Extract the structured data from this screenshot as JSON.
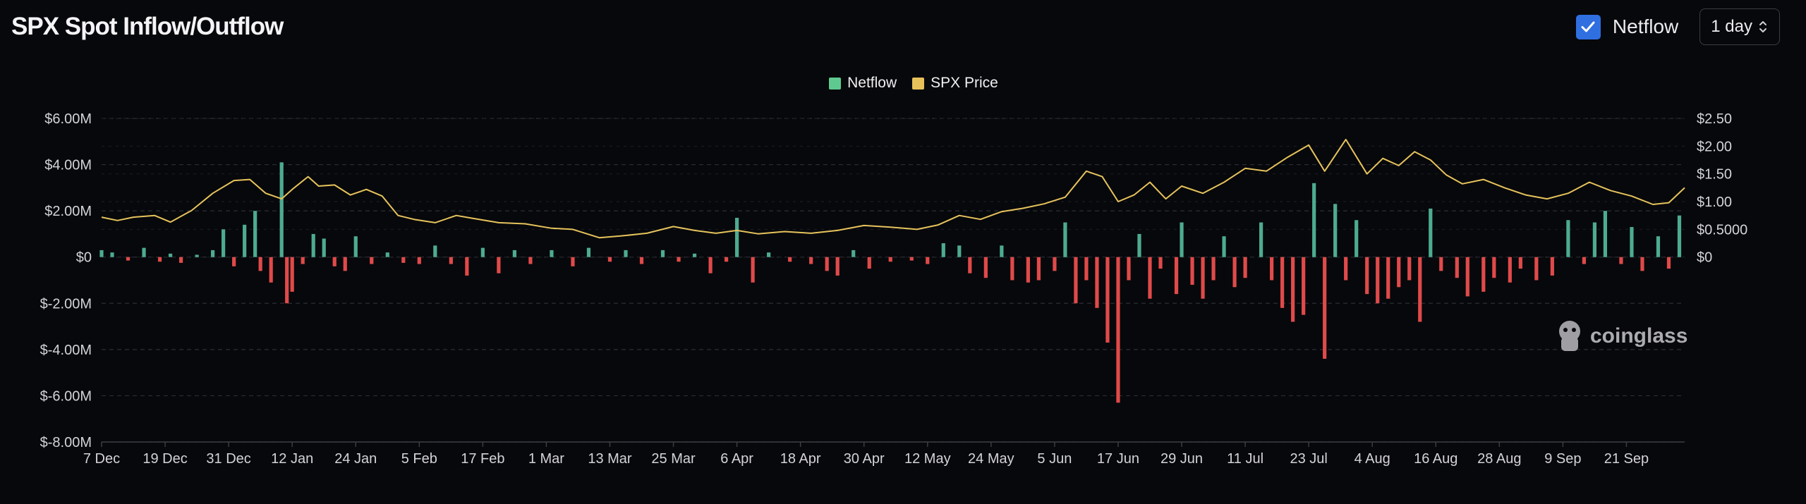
{
  "title": "SPX Spot Inflow/Outflow",
  "controls": {
    "netflow_toggle_label": "Netflow",
    "netflow_checked": true,
    "interval_value": "1 day"
  },
  "colors": {
    "positive": "#4dab90",
    "negative": "#e04a4a",
    "price": "#e6c35c",
    "checkbox": "#2f6fe0",
    "legend_netflow": "#5fca8f",
    "legend_price": "#e8c05a"
  },
  "watermark": "coinglass",
  "chart_data": {
    "type": "bar",
    "legend": [
      "Netflow",
      "SPX Price"
    ],
    "legend_position": "top-center",
    "grid": true,
    "x_start": "2023-12-07",
    "x_end": "2024-10-01",
    "x_ticks": [
      "7 Dec",
      "19 Dec",
      "31 Dec",
      "12 Jan",
      "24 Jan",
      "5 Feb",
      "17 Feb",
      "1 Mar",
      "13 Mar",
      "25 Mar",
      "6 Apr",
      "18 Apr",
      "30 Apr",
      "12 May",
      "24 May",
      "5 Jun",
      "17 Jun",
      "29 Jun",
      "11 Jul",
      "23 Jul",
      "4 Aug",
      "16 Aug",
      "28 Aug",
      "9 Sep",
      "21 Sep"
    ],
    "y_left": {
      "ticks": [
        "$6.00M",
        "$4.00M",
        "$2.00M",
        "$0",
        "$-2.00M",
        "$-4.00M",
        "$-6.00M",
        "$-8.00M"
      ],
      "lim": [
        -8000000,
        6000000
      ]
    },
    "y_right": {
      "ticks": [
        "$2.50",
        "$2.00",
        "$1.50",
        "$1.00",
        "$0.5000",
        "$0"
      ],
      "lim": [
        0,
        2.5
      ]
    },
    "series": [
      {
        "name": "Netflow",
        "type": "bar",
        "points": [
          [
            "2023-12-07",
            300000
          ],
          [
            "2023-12-09",
            200000
          ],
          [
            "2023-12-12",
            -150000
          ],
          [
            "2023-12-15",
            400000
          ],
          [
            "2023-12-18",
            -200000
          ],
          [
            "2023-12-20",
            150000
          ],
          [
            "2023-12-22",
            -250000
          ],
          [
            "2023-12-25",
            100000
          ],
          [
            "2023-12-28",
            300000
          ],
          [
            "2023-12-30",
            1200000
          ],
          [
            "2024-01-01",
            -400000
          ],
          [
            "2024-01-03",
            1400000
          ],
          [
            "2024-01-05",
            2000000
          ],
          [
            "2024-01-06",
            -600000
          ],
          [
            "2024-01-08",
            -1100000
          ],
          [
            "2024-01-10",
            4100000
          ],
          [
            "2024-01-11",
            -2000000
          ],
          [
            "2024-01-12",
            -1500000
          ],
          [
            "2024-01-14",
            -300000
          ],
          [
            "2024-01-16",
            1000000
          ],
          [
            "2024-01-18",
            800000
          ],
          [
            "2024-01-20",
            -400000
          ],
          [
            "2024-01-22",
            -600000
          ],
          [
            "2024-01-24",
            900000
          ],
          [
            "2024-01-27",
            -300000
          ],
          [
            "2024-01-30",
            200000
          ],
          [
            "2024-02-02",
            -250000
          ],
          [
            "2024-02-05",
            -300000
          ],
          [
            "2024-02-08",
            500000
          ],
          [
            "2024-02-11",
            -300000
          ],
          [
            "2024-02-14",
            -800000
          ],
          [
            "2024-02-17",
            400000
          ],
          [
            "2024-02-20",
            -700000
          ],
          [
            "2024-02-23",
            300000
          ],
          [
            "2024-02-26",
            -300000
          ],
          [
            "2024-03-01",
            300000
          ],
          [
            "2024-03-05",
            -400000
          ],
          [
            "2024-03-08",
            400000
          ],
          [
            "2024-03-12",
            -200000
          ],
          [
            "2024-03-15",
            300000
          ],
          [
            "2024-03-18",
            -300000
          ],
          [
            "2024-03-22",
            300000
          ],
          [
            "2024-03-25",
            -200000
          ],
          [
            "2024-03-28",
            150000
          ],
          [
            "2024-03-31",
            -700000
          ],
          [
            "2024-04-03",
            -200000
          ],
          [
            "2024-04-05",
            1700000
          ],
          [
            "2024-04-08",
            -1100000
          ],
          [
            "2024-04-11",
            200000
          ],
          [
            "2024-04-15",
            -200000
          ],
          [
            "2024-04-19",
            -300000
          ],
          [
            "2024-04-22",
            -600000
          ],
          [
            "2024-04-24",
            -800000
          ],
          [
            "2024-04-27",
            300000
          ],
          [
            "2024-04-30",
            -500000
          ],
          [
            "2024-05-04",
            -200000
          ],
          [
            "2024-05-08",
            -150000
          ],
          [
            "2024-05-11",
            -300000
          ],
          [
            "2024-05-14",
            600000
          ],
          [
            "2024-05-17",
            500000
          ],
          [
            "2024-05-19",
            -700000
          ],
          [
            "2024-05-22",
            -900000
          ],
          [
            "2024-05-25",
            500000
          ],
          [
            "2024-05-27",
            -1000000
          ],
          [
            "2024-05-30",
            -1100000
          ],
          [
            "2024-06-01",
            -1000000
          ],
          [
            "2024-06-04",
            -600000
          ],
          [
            "2024-06-06",
            1500000
          ],
          [
            "2024-06-08",
            -2000000
          ],
          [
            "2024-06-10",
            -1000000
          ],
          [
            "2024-06-12",
            -2200000
          ],
          [
            "2024-06-14",
            -3700000
          ],
          [
            "2024-06-16",
            -6300000
          ],
          [
            "2024-06-18",
            -1000000
          ],
          [
            "2024-06-20",
            1000000
          ],
          [
            "2024-06-22",
            -1800000
          ],
          [
            "2024-06-24",
            -500000
          ],
          [
            "2024-06-27",
            -1600000
          ],
          [
            "2024-06-28",
            1500000
          ],
          [
            "2024-06-30",
            -1200000
          ],
          [
            "2024-07-02",
            -1800000
          ],
          [
            "2024-07-04",
            -1000000
          ],
          [
            "2024-07-06",
            900000
          ],
          [
            "2024-07-08",
            -1300000
          ],
          [
            "2024-07-10",
            -900000
          ],
          [
            "2024-07-13",
            1500000
          ],
          [
            "2024-07-15",
            -1000000
          ],
          [
            "2024-07-17",
            -2200000
          ],
          [
            "2024-07-19",
            -2800000
          ],
          [
            "2024-07-21",
            -2500000
          ],
          [
            "2024-07-23",
            3200000
          ],
          [
            "2024-07-25",
            -4400000
          ],
          [
            "2024-07-27",
            2300000
          ],
          [
            "2024-07-29",
            -1000000
          ],
          [
            "2024-07-31",
            1600000
          ],
          [
            "2024-08-02",
            -1600000
          ],
          [
            "2024-08-04",
            -2000000
          ],
          [
            "2024-08-06",
            -1800000
          ],
          [
            "2024-08-08",
            -1300000
          ],
          [
            "2024-08-10",
            -1000000
          ],
          [
            "2024-08-12",
            -2800000
          ],
          [
            "2024-08-14",
            2100000
          ],
          [
            "2024-08-16",
            -600000
          ],
          [
            "2024-08-19",
            -900000
          ],
          [
            "2024-08-21",
            -1700000
          ],
          [
            "2024-08-24",
            -1500000
          ],
          [
            "2024-08-26",
            -900000
          ],
          [
            "2024-08-29",
            -1100000
          ],
          [
            "2024-08-31",
            -500000
          ],
          [
            "2024-09-03",
            -1000000
          ],
          [
            "2024-09-06",
            -800000
          ],
          [
            "2024-09-09",
            1600000
          ],
          [
            "2024-09-12",
            -300000
          ],
          [
            "2024-09-14",
            1500000
          ],
          [
            "2024-09-16",
            2000000
          ],
          [
            "2024-09-19",
            -300000
          ],
          [
            "2024-09-21",
            1300000
          ],
          [
            "2024-09-23",
            -600000
          ],
          [
            "2024-09-26",
            900000
          ],
          [
            "2024-09-28",
            -500000
          ],
          [
            "2024-09-30",
            1800000
          ]
        ]
      },
      {
        "name": "SPX Price",
        "type": "line",
        "axis": "right",
        "points": [
          [
            "2023-12-07",
            0.72
          ],
          [
            "2023-12-10",
            0.66
          ],
          [
            "2023-12-13",
            0.72
          ],
          [
            "2023-12-17",
            0.75
          ],
          [
            "2023-12-20",
            0.63
          ],
          [
            "2023-12-24",
            0.84
          ],
          [
            "2023-12-28",
            1.15
          ],
          [
            "2024-01-01",
            1.38
          ],
          [
            "2024-01-04",
            1.4
          ],
          [
            "2024-01-07",
            1.15
          ],
          [
            "2024-01-10",
            1.05
          ],
          [
            "2024-01-12",
            1.22
          ],
          [
            "2024-01-15",
            1.45
          ],
          [
            "2024-01-17",
            1.28
          ],
          [
            "2024-01-20",
            1.3
          ],
          [
            "2024-01-23",
            1.12
          ],
          [
            "2024-01-26",
            1.22
          ],
          [
            "2024-01-29",
            1.1
          ],
          [
            "2024-02-01",
            0.75
          ],
          [
            "2024-02-04",
            0.68
          ],
          [
            "2024-02-08",
            0.62
          ],
          [
            "2024-02-12",
            0.75
          ],
          [
            "2024-02-15",
            0.7
          ],
          [
            "2024-02-20",
            0.62
          ],
          [
            "2024-02-25",
            0.6
          ],
          [
            "2024-03-01",
            0.52
          ],
          [
            "2024-03-05",
            0.5
          ],
          [
            "2024-03-10",
            0.35
          ],
          [
            "2024-03-14",
            0.38
          ],
          [
            "2024-03-19",
            0.43
          ],
          [
            "2024-03-24",
            0.55
          ],
          [
            "2024-03-28",
            0.48
          ],
          [
            "2024-04-01",
            0.43
          ],
          [
            "2024-04-05",
            0.48
          ],
          [
            "2024-04-09",
            0.42
          ],
          [
            "2024-04-14",
            0.46
          ],
          [
            "2024-04-19",
            0.43
          ],
          [
            "2024-04-24",
            0.48
          ],
          [
            "2024-04-29",
            0.57
          ],
          [
            "2024-05-04",
            0.54
          ],
          [
            "2024-05-09",
            0.5
          ],
          [
            "2024-05-13",
            0.58
          ],
          [
            "2024-05-17",
            0.75
          ],
          [
            "2024-05-21",
            0.68
          ],
          [
            "2024-05-25",
            0.82
          ],
          [
            "2024-05-29",
            0.88
          ],
          [
            "2024-06-02",
            0.96
          ],
          [
            "2024-06-06",
            1.08
          ],
          [
            "2024-06-10",
            1.55
          ],
          [
            "2024-06-13",
            1.45
          ],
          [
            "2024-06-16",
            1.0
          ],
          [
            "2024-06-19",
            1.12
          ],
          [
            "2024-06-22",
            1.35
          ],
          [
            "2024-06-25",
            1.05
          ],
          [
            "2024-06-28",
            1.28
          ],
          [
            "2024-07-02",
            1.15
          ],
          [
            "2024-07-06",
            1.35
          ],
          [
            "2024-07-10",
            1.6
          ],
          [
            "2024-07-14",
            1.55
          ],
          [
            "2024-07-18",
            1.8
          ],
          [
            "2024-07-22",
            2.02
          ],
          [
            "2024-07-25",
            1.55
          ],
          [
            "2024-07-29",
            2.12
          ],
          [
            "2024-08-02",
            1.5
          ],
          [
            "2024-08-05",
            1.78
          ],
          [
            "2024-08-08",
            1.65
          ],
          [
            "2024-08-11",
            1.9
          ],
          [
            "2024-08-14",
            1.75
          ],
          [
            "2024-08-17",
            1.48
          ],
          [
            "2024-08-20",
            1.32
          ],
          [
            "2024-08-24",
            1.4
          ],
          [
            "2024-08-28",
            1.25
          ],
          [
            "2024-09-01",
            1.12
          ],
          [
            "2024-09-05",
            1.05
          ],
          [
            "2024-09-09",
            1.15
          ],
          [
            "2024-09-13",
            1.35
          ],
          [
            "2024-09-17",
            1.2
          ],
          [
            "2024-09-21",
            1.1
          ],
          [
            "2024-09-25",
            0.95
          ],
          [
            "2024-09-28",
            0.98
          ],
          [
            "2024-10-01",
            1.25
          ]
        ]
      }
    ]
  }
}
